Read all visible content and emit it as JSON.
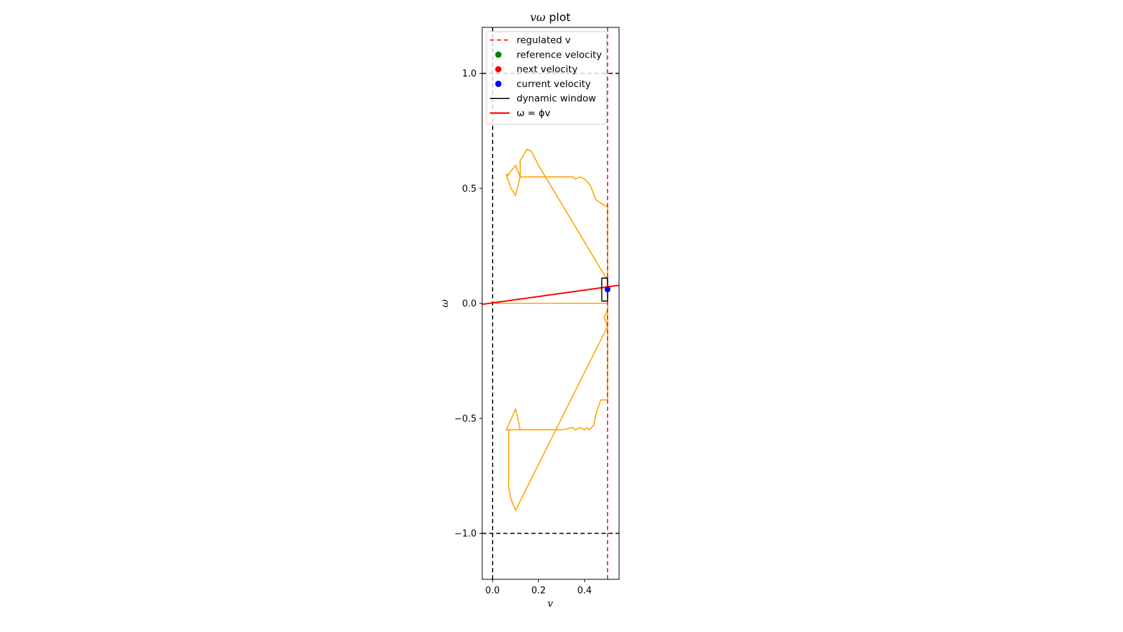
{
  "chart_data": {
    "type": "line",
    "title_prefix": "vω",
    "title_suffix": " plot",
    "xlabel": "v",
    "ylabel": "ω",
    "xlim": [
      -0.045,
      0.55
    ],
    "ylim": [
      -1.2,
      1.2
    ],
    "xticks": [
      0.0,
      0.2,
      0.4
    ],
    "xtick_labels": [
      "0.0",
      "0.2",
      "0.4"
    ],
    "yticks": [
      1.0,
      0.5,
      0.0,
      -0.5,
      -1.0
    ],
    "ytick_labels": [
      "1.0",
      "0.5",
      "0.0",
      "−0.5",
      "−1.0"
    ],
    "grid": false,
    "legend_position": "upper-left",
    "legend": [
      {
        "label": "regulated v",
        "kind": "dashed-line",
        "color": "#ff0000"
      },
      {
        "label": "reference velocity",
        "kind": "dot",
        "color": "#008000"
      },
      {
        "label": "next velocity",
        "kind": "dot",
        "color": "#ff0000"
      },
      {
        "label": "current velocity",
        "kind": "dot",
        "color": "#0000ff"
      },
      {
        "label": "dynamic window",
        "kind": "line",
        "color": "#000000"
      },
      {
        "label": "ω = ϕv",
        "kind": "line",
        "color": "#ff0000"
      }
    ],
    "reference_lines": {
      "vertical_black_dashed": 0.0,
      "vertical_red_dashed": 0.5,
      "horizontal_black_dashed": [
        1.0,
        -1.0
      ]
    },
    "omega_phi_line": {
      "x": [
        -0.05,
        0.56
      ],
      "y": [
        -0.005,
        0.08
      ],
      "color": "#ff0000"
    },
    "dynamic_window": {
      "v_min": 0.475,
      "v_max": 0.5,
      "w_min": 0.01,
      "w_max": 0.11,
      "color": "#000000"
    },
    "points": {
      "reference_velocity": {
        "v": 0.5,
        "w": 0.06,
        "color": "#008000"
      },
      "next_velocity": {
        "v": 0.5,
        "w": 0.065,
        "color": "#ff0000"
      },
      "current_velocity": {
        "v": 0.5,
        "w": 0.06,
        "color": "#0000ff"
      }
    },
    "trajectory": {
      "color": "#ffa500",
      "v": [
        0.0,
        0.5,
        0.5,
        0.485,
        0.5,
        0.5,
        0.47,
        0.45,
        0.44,
        0.42,
        0.41,
        0.4,
        0.38,
        0.36,
        0.35,
        0.3,
        0.25,
        0.07,
        0.06,
        0.1,
        0.11,
        0.12,
        0.09,
        0.07,
        0.07,
        0.08,
        0.1,
        0.5,
        0.5,
        0.5,
        0.5,
        0.48,
        0.45,
        0.43,
        0.42,
        0.4,
        0.38,
        0.36,
        0.35,
        0.3,
        0.25,
        0.15,
        0.12,
        0.1,
        0.08,
        0.06,
        0.07,
        0.06,
        0.1,
        0.12,
        0.12,
        0.15,
        0.17,
        0.2,
        0.5,
        0.5
      ],
      "w": [
        0.0,
        0.0,
        -0.03,
        -0.06,
        -0.1,
        -0.42,
        -0.42,
        -0.48,
        -0.53,
        -0.55,
        -0.54,
        -0.55,
        -0.54,
        -0.55,
        -0.54,
        -0.55,
        -0.55,
        -0.55,
        -0.55,
        -0.46,
        -0.5,
        -0.55,
        -0.55,
        -0.55,
        -0.8,
        -0.85,
        -0.9,
        -0.1,
        0.0,
        0.1,
        0.42,
        0.43,
        0.45,
        0.5,
        0.52,
        0.54,
        0.55,
        0.54,
        0.55,
        0.55,
        0.55,
        0.55,
        0.55,
        0.47,
        0.5,
        0.56,
        0.56,
        0.55,
        0.6,
        0.55,
        0.62,
        0.67,
        0.66,
        0.6,
        0.1,
        0.08
      ]
    }
  }
}
